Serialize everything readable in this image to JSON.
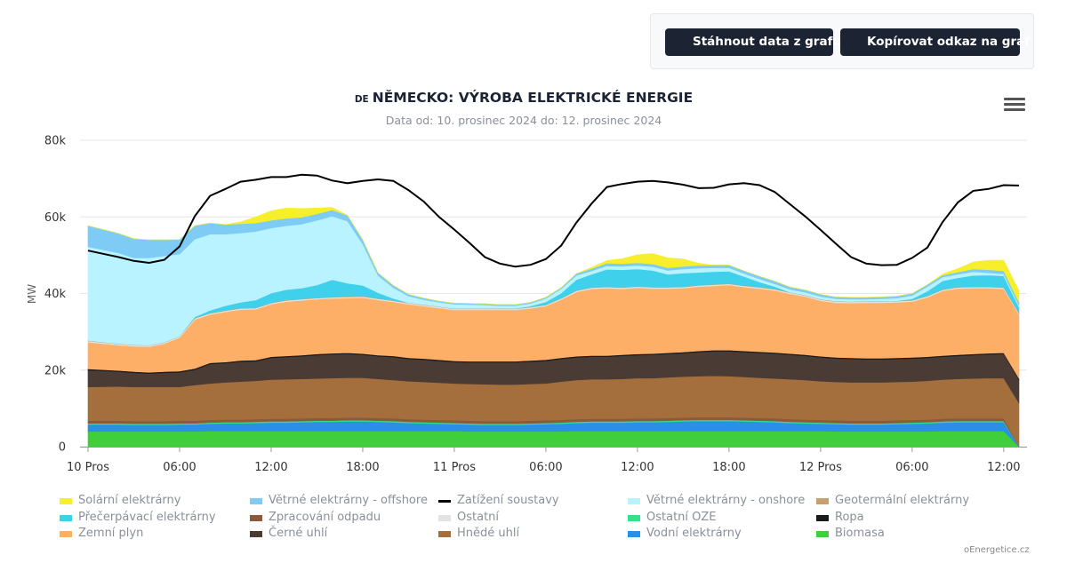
{
  "buttons": {
    "download": "Stáhnout data z grafu",
    "copy_link": "Kopírovat odkaz na graf"
  },
  "header": {
    "flag": "DE",
    "title": "NĚMECKO: VÝROBA ELEKTRICKÉ ENERGIE",
    "subtitle": "Data od: 10. prosinec 2024 do: 12. prosinec 2024",
    "menu_icon": "hamburger-menu-icon"
  },
  "credits": "oEnergetice.cz",
  "chart_data": {
    "type": "area",
    "stacked": true,
    "title": "NĚMECKO: VÝROBA ELEKTRICKÉ ENERGIE",
    "subtitle": "Data od: 10. prosinec 2024 do: 12. prosinec 2024",
    "ylabel": "MW",
    "ylim": [
      0,
      80000
    ],
    "yticks": [
      0,
      20000,
      40000,
      60000,
      80000
    ],
    "ytick_labels": [
      "0",
      "20k",
      "40k",
      "60k",
      "80k"
    ],
    "xtick_labels": [
      "10 Pros",
      "06:00",
      "12:00",
      "18:00",
      "11 Pros",
      "06:00",
      "12:00",
      "18:00",
      "12 Pros",
      "06:00",
      "12:00"
    ],
    "grid": true,
    "legend_position": "bottom",
    "x": [
      "2024-12-10 00:00",
      "2024-12-10 02:00",
      "2024-12-10 03:00",
      "2024-12-10 04:00",
      "2024-12-10 05:00",
      "2024-12-10 06:00",
      "2024-12-10 07:00",
      "2024-12-10 08:00",
      "2024-12-10 09:00",
      "2024-12-10 10:00",
      "2024-12-10 11:00",
      "2024-12-10 12:00",
      "2024-12-10 13:00",
      "2024-12-10 14:00",
      "2024-12-10 15:00",
      "2024-12-10 16:00",
      "2024-12-10 17:00",
      "2024-12-10 18:00",
      "2024-12-10 19:00",
      "2024-12-10 20:00",
      "2024-12-10 21:00",
      "2024-12-10 22:00",
      "2024-12-10 23:00",
      "2024-12-11 00:00",
      "2024-12-11 01:00",
      "2024-12-11 02:00",
      "2024-12-11 03:00",
      "2024-12-11 04:00",
      "2024-12-11 05:00",
      "2024-12-11 06:00",
      "2024-12-11 07:00",
      "2024-12-11 08:00",
      "2024-12-11 09:00",
      "2024-12-11 10:00",
      "2024-12-11 11:00",
      "2024-12-11 12:00",
      "2024-12-11 13:00",
      "2024-12-11 14:00",
      "2024-12-11 15:00",
      "2024-12-11 16:00",
      "2024-12-11 17:00",
      "2024-12-11 18:00",
      "2024-12-11 19:00",
      "2024-12-11 20:00",
      "2024-12-11 21:00",
      "2024-12-11 22:00",
      "2024-12-11 23:00",
      "2024-12-12 00:00",
      "2024-12-12 01:00",
      "2024-12-12 02:00",
      "2024-12-12 03:00",
      "2024-12-12 04:00",
      "2024-12-12 05:00",
      "2024-12-12 06:00",
      "2024-12-12 07:00",
      "2024-12-12 08:00",
      "2024-12-12 09:00",
      "2024-12-12 10:00",
      "2024-12-12 11:00",
      "2024-12-12 12:00",
      "2024-12-12 13:00"
    ],
    "series": [
      {
        "name": "Biomasa",
        "color": "#3fcf3a",
        "values": [
          4000,
          4000,
          4000,
          4000,
          4000,
          4000,
          4000,
          4100,
          4100,
          4100,
          4100,
          4100,
          4100,
          4100,
          4100,
          4100,
          4100,
          4100,
          4100,
          4100,
          4100,
          4100,
          4100,
          4100,
          4000,
          4000,
          4000,
          4000,
          4000,
          4000,
          4000,
          4100,
          4100,
          4100,
          4100,
          4100,
          4100,
          4100,
          4100,
          4100,
          4100,
          4100,
          4100,
          4100,
          4100,
          4100,
          4100,
          4100,
          4000,
          4000,
          4000,
          4000,
          4000,
          4000,
          4000,
          4100,
          4100,
          4100,
          4100,
          4100,
          0
        ]
      },
      {
        "name": "Vodní elektrárny",
        "color": "#2c8fe6",
        "values": [
          1800,
          1800,
          1700,
          1700,
          1700,
          1800,
          1800,
          1900,
          2000,
          2000,
          2100,
          2200,
          2200,
          2300,
          2400,
          2400,
          2500,
          2500,
          2400,
          2300,
          2100,
          2000,
          1900,
          1800,
          1800,
          1700,
          1700,
          1700,
          1800,
          1900,
          2000,
          2100,
          2200,
          2200,
          2200,
          2300,
          2300,
          2400,
          2500,
          2600,
          2600,
          2600,
          2500,
          2400,
          2300,
          2100,
          2000,
          1900,
          1900,
          1800,
          1800,
          1800,
          1900,
          2000,
          2100,
          2200,
          2300,
          2300,
          2300,
          2300,
          0
        ]
      },
      {
        "name": "Ostatní OZE",
        "color": "#35e08a",
        "values": [
          300,
          300,
          300,
          300,
          300,
          300,
          300,
          300,
          300,
          300,
          300,
          300,
          300,
          300,
          300,
          300,
          300,
          300,
          300,
          300,
          300,
          300,
          300,
          300,
          300,
          300,
          300,
          300,
          300,
          300,
          300,
          300,
          300,
          300,
          300,
          300,
          300,
          300,
          300,
          300,
          300,
          300,
          300,
          300,
          300,
          300,
          300,
          300,
          300,
          300,
          300,
          300,
          300,
          300,
          300,
          300,
          300,
          300,
          300,
          300,
          0
        ]
      },
      {
        "name": "Zpracování odpadu",
        "color": "#8a5a3a",
        "values": [
          700,
          700,
          700,
          700,
          700,
          700,
          700,
          700,
          700,
          700,
          700,
          700,
          700,
          700,
          700,
          700,
          700,
          700,
          700,
          700,
          700,
          700,
          700,
          700,
          700,
          700,
          700,
          700,
          700,
          700,
          700,
          700,
          700,
          700,
          700,
          700,
          700,
          700,
          700,
          700,
          700,
          700,
          700,
          700,
          700,
          700,
          700,
          700,
          700,
          700,
          700,
          700,
          700,
          700,
          700,
          700,
          700,
          700,
          700,
          700,
          0
        ]
      },
      {
        "name": "Hnědé uhlí",
        "color": "#a46f3c",
        "values": [
          8800,
          8900,
          8900,
          8900,
          8900,
          8800,
          9300,
          9500,
          9700,
          9900,
          10000,
          10200,
          10300,
          10300,
          10300,
          10400,
          10400,
          10400,
          10200,
          10000,
          9900,
          9800,
          9700,
          9600,
          9600,
          9600,
          9500,
          9500,
          9600,
          9600,
          10000,
          10200,
          10300,
          10300,
          10400,
          10500,
          10500,
          10600,
          10700,
          10700,
          10800,
          10700,
          10600,
          10500,
          10400,
          10400,
          10300,
          10100,
          10000,
          10000,
          10000,
          10000,
          10000,
          10000,
          10100,
          10200,
          10300,
          10400,
          10500,
          10500,
          11400
        ]
      },
      {
        "name": "Černé uhlí",
        "color": "#4a3c34",
        "values": [
          4400,
          3900,
          3700,
          3500,
          3700,
          3800,
          4000,
          5100,
          5000,
          5200,
          5100,
          5700,
          5800,
          5900,
          6100,
          6200,
          6200,
          6000,
          5900,
          6000,
          5800,
          5800,
          5700,
          5600,
          5600,
          5700,
          5800,
          5800,
          5800,
          5900,
          5900,
          5900,
          5900,
          5900,
          6000,
          6000,
          6100,
          6100,
          6100,
          6300,
          6400,
          6500,
          6500,
          6500,
          6500,
          6400,
          6300,
          6200,
          6100,
          6100,
          6000,
          6000,
          6000,
          6000,
          6000,
          6000,
          6000,
          6100,
          6200,
          6300,
          6100
        ]
      },
      {
        "name": "Ropa",
        "color": "#1a1a1a",
        "values": [
          300,
          300,
          300,
          300,
          300,
          300,
          300,
          300,
          300,
          300,
          300,
          300,
          300,
          300,
          300,
          300,
          300,
          300,
          300,
          300,
          300,
          300,
          300,
          300,
          300,
          300,
          300,
          300,
          300,
          300,
          300,
          300,
          300,
          300,
          300,
          300,
          300,
          300,
          300,
          300,
          300,
          300,
          300,
          300,
          300,
          300,
          300,
          300,
          300,
          300,
          300,
          300,
          300,
          300,
          300,
          300,
          300,
          300,
          300,
          300,
          300
        ]
      },
      {
        "name": "Zemní plyn",
        "color": "#fdaf68",
        "values": [
          7000,
          6600,
          6600,
          6700,
          7300,
          8800,
          12800,
          12600,
          13100,
          13300,
          13300,
          13700,
          14200,
          14300,
          14300,
          14300,
          14300,
          14600,
          14400,
          14100,
          14000,
          13700,
          13500,
          13300,
          13400,
          13400,
          13400,
          13400,
          13600,
          14000,
          15200,
          16800,
          17400,
          17600,
          17200,
          17300,
          17000,
          16800,
          16700,
          16800,
          16800,
          17000,
          16700,
          16500,
          16200,
          15600,
          15200,
          14500,
          14300,
          14300,
          14500,
          14500,
          14500,
          14600,
          15500,
          16900,
          17300,
          17200,
          17000,
          16700,
          16700
        ]
      },
      {
        "name": "Ostatní",
        "color": "#e3e3e3",
        "values": [
          300,
          300,
          300,
          300,
          300,
          300,
          300,
          300,
          300,
          300,
          300,
          300,
          300,
          300,
          300,
          300,
          300,
          300,
          300,
          300,
          300,
          300,
          300,
          300,
          300,
          300,
          300,
          300,
          300,
          300,
          300,
          300,
          300,
          300,
          300,
          300,
          300,
          300,
          300,
          300,
          300,
          300,
          300,
          300,
          300,
          300,
          300,
          300,
          300,
          300,
          300,
          300,
          300,
          300,
          300,
          300,
          300,
          300,
          300,
          300,
          300
        ]
      },
      {
        "name": "Geotermální elektrárny",
        "color": "#c8a06a",
        "values": [
          100,
          100,
          100,
          100,
          100,
          100,
          100,
          100,
          100,
          100,
          100,
          100,
          100,
          100,
          100,
          100,
          100,
          100,
          100,
          100,
          100,
          100,
          100,
          100,
          100,
          100,
          100,
          100,
          100,
          100,
          100,
          100,
          100,
          100,
          100,
          100,
          100,
          100,
          100,
          100,
          100,
          100,
          100,
          100,
          100,
          100,
          100,
          100,
          100,
          100,
          100,
          100,
          100,
          100,
          100,
          100,
          100,
          100,
          100,
          100,
          100
        ]
      },
      {
        "name": "Přečerpávací elektrárny",
        "color": "#3fd0ec",
        "values": [
          0,
          0,
          0,
          0,
          0,
          0,
          300,
          700,
          1200,
          1500,
          2000,
          2500,
          2700,
          2800,
          3300,
          4500,
          3500,
          2800,
          1500,
          500,
          0,
          0,
          0,
          0,
          0,
          0,
          0,
          0,
          200,
          700,
          1300,
          2800,
          3400,
          4500,
          4600,
          4500,
          4300,
          3300,
          3500,
          3300,
          3300,
          3200,
          2300,
          1300,
          600,
          0,
          0,
          0,
          0,
          0,
          0,
          0,
          0,
          300,
          1200,
          2200,
          2400,
          2900,
          3000,
          3000,
          1500
        ]
      },
      {
        "name": "Větrné elektrárny - onshore",
        "color": "#b8f3ff",
        "values": [
          24500,
          23700,
          22700,
          22800,
          22500,
          21400,
          20300,
          19900,
          18700,
          18100,
          17900,
          17000,
          16700,
          16700,
          16900,
          16600,
          16200,
          10800,
          4500,
          2800,
          1700,
          1300,
          1100,
          1100,
          1000,
          900,
          700,
          700,
          700,
          900,
          1100,
          1100,
          900,
          900,
          900,
          900,
          1000,
          1000,
          1100,
          1100,
          1000,
          900,
          800,
          800,
          700,
          800,
          700,
          700,
          600,
          600,
          500,
          600,
          700,
          900,
          1200,
          1000,
          900,
          1000,
          600,
          500,
          500
        ]
      },
      {
        "name": "Větrné elektrárny - offshore",
        "color": "#7ecbf5",
        "values": [
          5500,
          5100,
          5000,
          4700,
          4200,
          3800,
          3500,
          2900,
          2500,
          2400,
          2200,
          2000,
          1900,
          1800,
          1700,
          1600,
          1500,
          1100,
          700,
          600,
          500,
          400,
          300,
          300,
          300,
          300,
          300,
          300,
          300,
          300,
          300,
          500,
          600,
          700,
          700,
          700,
          700,
          700,
          700,
          700,
          700,
          700,
          700,
          700,
          700,
          600,
          600,
          600,
          500,
          500,
          500,
          500,
          500,
          500,
          500,
          500,
          600,
          700,
          800,
          800,
          800
        ]
      },
      {
        "name": "Solární elektrárny",
        "color": "#f7ee2c",
        "values": [
          0,
          0,
          0,
          0,
          0,
          0,
          0,
          0,
          0,
          500,
          1600,
          2500,
          2700,
          2300,
          1500,
          700,
          0,
          0,
          0,
          0,
          0,
          0,
          0,
          0,
          0,
          0,
          0,
          0,
          0,
          0,
          0,
          0,
          300,
          700,
          1300,
          2100,
          2700,
          2600,
          1900,
          600,
          0,
          0,
          0,
          0,
          0,
          0,
          0,
          0,
          0,
          0,
          0,
          0,
          0,
          0,
          0,
          300,
          900,
          1800,
          2500,
          2800,
          3000
        ]
      }
    ],
    "load_series": {
      "name": "Zatížení soustavy",
      "color": "#000000",
      "values": [
        51200,
        49500,
        48500,
        48000,
        48800,
        52300,
        60200,
        65500,
        67300,
        69200,
        69700,
        70400,
        70400,
        71000,
        70800,
        69500,
        68800,
        69400,
        69800,
        69400,
        67000,
        64000,
        60000,
        56700,
        53200,
        49500,
        47800,
        47000,
        47500,
        49000,
        52500,
        58500,
        63500,
        67800,
        68600,
        69200,
        69400,
        69000,
        68400,
        67500,
        67600,
        68500,
        68800,
        68300,
        66500,
        63300,
        60100,
        56600,
        53000,
        49500,
        47800,
        47400,
        47500,
        49300,
        52000,
        58700,
        63800,
        66800,
        67300,
        68300,
        68200
      ]
    }
  },
  "legend": [
    {
      "label": "Solární elektrárny",
      "color": "#f7ee2c",
      "icon": "area-swatch"
    },
    {
      "label": "Větrné elektrárny - offshore",
      "color": "#7ecbf5",
      "icon": "area-swatch"
    },
    {
      "label": "Zatížení soustavy",
      "color": "#000000",
      "icon": "line-swatch"
    },
    {
      "label": "Větrné elektrárny - onshore",
      "color": "#b8f3ff",
      "icon": "area-swatch"
    },
    {
      "label": "Geotermální elektrárny",
      "color": "#c8a06a",
      "icon": "area-swatch"
    },
    {
      "label": "Přečerpávací elektrárny",
      "color": "#3fd0ec",
      "icon": "area-swatch"
    },
    {
      "label": "Zpracování odpadu",
      "color": "#8a5a3a",
      "icon": "area-swatch"
    },
    {
      "label": "Ostatní",
      "color": "#e3e3e3",
      "icon": "area-swatch"
    },
    {
      "label": "Ostatní OZE",
      "color": "#35e08a",
      "icon": "area-swatch"
    },
    {
      "label": "Ropa",
      "color": "#1a1a1a",
      "icon": "area-swatch"
    },
    {
      "label": "Zemní plyn",
      "color": "#fdaf68",
      "icon": "area-swatch"
    },
    {
      "label": "Černé uhlí",
      "color": "#4a3c34",
      "icon": "area-swatch"
    },
    {
      "label": "Hnědé uhlí",
      "color": "#a46f3c",
      "icon": "area-swatch"
    },
    {
      "label": "Vodní elektrárny",
      "color": "#2c8fe6",
      "icon": "area-swatch"
    },
    {
      "label": "Biomasa",
      "color": "#3fcf3a",
      "icon": "area-swatch"
    }
  ]
}
